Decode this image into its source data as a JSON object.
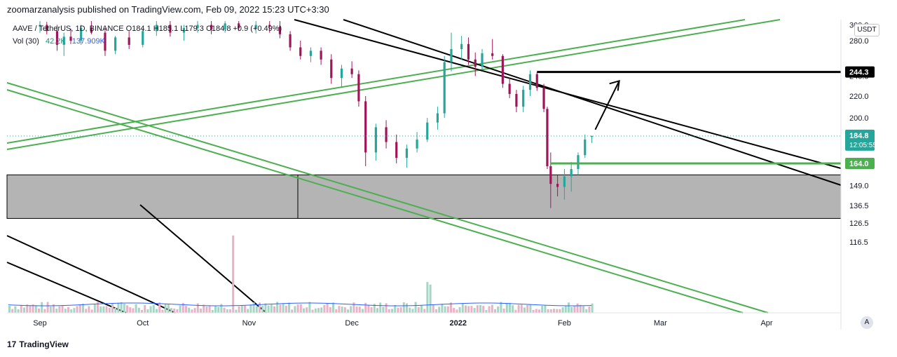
{
  "header": {
    "publisher_line": "zoomarzanalysis published on TradingView.com, Feb 09, 2022 15:23 UTC+3:30"
  },
  "legend": {
    "symbol_line": "AAVE / TetherUS, 1D, BINANCE  O184.1 H185.1 L179.3 C184.8 +0.9 (+0.49%)",
    "vol_label": "Vol (30)",
    "vol_value": "42.2K",
    "vol_ma": "137.909K"
  },
  "currency_badge": "USDT",
  "auto_button": "A",
  "footer": {
    "brand": "TradingView",
    "logo": "17"
  },
  "chart_data": {
    "type": "candlestick",
    "x_axis": {
      "labels": [
        "Sep",
        "Oct",
        "Nov",
        "Dec",
        "2022",
        "Feb",
        "Mar",
        "Apr"
      ],
      "label_dates": [
        "2021-09-01",
        "2021-10-01",
        "2021-11-01",
        "2021-12-01",
        "2022-01-01",
        "2022-02-01",
        "2022-03-01",
        "2022-04-01"
      ]
    },
    "y_axis": {
      "scale": "log",
      "tick_labels": [
        300.0,
        280.0,
        240.0,
        220.0,
        200.0,
        149.0,
        136.5,
        126.5,
        116.5
      ],
      "visible_labels": [
        "300.0",
        "280.0",
        "240.0",
        "220.0",
        "200.0",
        "149.0",
        "136.5",
        "126.5",
        "116.5"
      ],
      "range": [
        112,
        305
      ]
    },
    "price_labels": [
      {
        "value": "244.3",
        "style": "black"
      },
      {
        "value": "184.8",
        "sub": "12:05:55",
        "style": "teal"
      },
      {
        "value": "164.0",
        "style": "green"
      }
    ],
    "current_price": 184.8,
    "series": [
      {
        "values": [
          [
            "2021-09-01",
            298,
            305,
            290,
            300
          ],
          [
            "2021-09-03",
            300,
            304,
            288,
            292
          ],
          [
            "2021-09-06",
            292,
            300,
            268,
            275
          ],
          [
            "2021-09-08",
            275,
            290,
            262,
            285
          ],
          [
            "2021-09-10",
            285,
            295,
            276,
            280
          ],
          [
            "2021-09-13",
            280,
            300,
            275,
            296
          ],
          [
            "2021-09-16",
            296,
            305,
            288,
            290
          ],
          [
            "2021-09-20",
            290,
            296,
            262,
            268
          ],
          [
            "2021-09-23",
            268,
            286,
            264,
            284
          ],
          [
            "2021-09-27",
            284,
            292,
            270,
            275
          ],
          [
            "2021-10-01",
            275,
            295,
            272,
            292
          ],
          [
            "2021-10-05",
            292,
            305,
            286,
            300
          ],
          [
            "2021-10-09",
            300,
            305,
            285,
            290
          ],
          [
            "2021-10-13",
            290,
            300,
            280,
            296
          ],
          [
            "2021-10-17",
            296,
            305,
            290,
            300
          ],
          [
            "2021-10-21",
            300,
            305,
            288,
            294
          ],
          [
            "2021-10-25",
            294,
            305,
            290,
            302
          ],
          [
            "2021-10-29",
            302,
            305,
            292,
            296
          ],
          [
            "2021-11-03",
            296,
            305,
            289,
            300
          ],
          [
            "2021-11-07",
            300,
            305,
            290,
            298
          ],
          [
            "2021-11-10",
            298,
            305,
            283,
            288
          ],
          [
            "2021-11-13",
            288,
            292,
            268,
            272
          ],
          [
            "2021-11-16",
            272,
            280,
            258,
            262
          ],
          [
            "2021-11-19",
            262,
            272,
            255,
            268
          ],
          [
            "2021-11-22",
            268,
            272,
            252,
            258
          ],
          [
            "2021-11-25",
            258,
            264,
            232,
            238
          ],
          [
            "2021-11-28",
            238,
            252,
            228,
            248
          ],
          [
            "2021-12-01",
            248,
            256,
            238,
            242
          ],
          [
            "2021-12-03",
            242,
            246,
            210,
            215
          ],
          [
            "2021-12-05",
            215,
            220,
            162,
            172
          ],
          [
            "2021-12-08",
            172,
            195,
            166,
            192
          ],
          [
            "2021-12-11",
            192,
            198,
            175,
            180
          ],
          [
            "2021-12-14",
            180,
            186,
            164,
            168
          ],
          [
            "2021-12-17",
            168,
            178,
            161,
            175
          ],
          [
            "2021-12-20",
            175,
            188,
            172,
            182
          ],
          [
            "2021-12-23",
            182,
            200,
            180,
            196
          ],
          [
            "2021-12-26",
            196,
            210,
            190,
            204
          ],
          [
            "2021-12-28",
            204,
            262,
            200,
            255
          ],
          [
            "2021-12-30",
            255,
            290,
            245,
            270
          ],
          [
            "2022-01-02",
            270,
            286,
            258,
            276
          ],
          [
            "2022-01-04",
            276,
            284,
            252,
            258
          ],
          [
            "2022-01-06",
            258,
            266,
            240,
            250
          ],
          [
            "2022-01-08",
            250,
            270,
            246,
            265
          ],
          [
            "2022-01-11",
            265,
            282,
            258,
            262
          ],
          [
            "2022-01-14",
            262,
            264,
            228,
            232
          ],
          [
            "2022-01-16",
            232,
            238,
            218,
            222
          ],
          [
            "2022-01-18",
            222,
            226,
            205,
            210
          ],
          [
            "2022-01-20",
            210,
            230,
            205,
            226
          ],
          [
            "2022-01-22",
            226,
            246,
            220,
            242
          ],
          [
            "2022-01-24",
            242,
            244,
            225,
            228
          ],
          [
            "2022-01-26",
            228,
            232,
            205,
            208
          ],
          [
            "2022-01-27",
            208,
            210,
            160,
            162
          ],
          [
            "2022-01-28",
            162,
            172,
            135,
            150
          ],
          [
            "2022-01-30",
            150,
            156,
            142,
            148
          ],
          [
            "2022-02-01",
            148,
            160,
            140,
            155
          ],
          [
            "2022-02-03",
            155,
            165,
            145,
            160
          ],
          [
            "2022-02-05",
            160,
            172,
            156,
            170
          ],
          [
            "2022-02-07",
            170,
            186,
            168,
            182
          ],
          [
            "2022-02-09",
            184.1,
            185.1,
            179.3,
            184.8
          ]
        ]
      }
    ],
    "volume": {
      "label": "Vol (30)",
      "value": "42.2K",
      "ma": "137.909K"
    },
    "drawings": {
      "support_zone": {
        "from": "2021-09-01",
        "price_range": [
          129.0,
          156.0
        ]
      },
      "horizontal_levels": [
        {
          "price": 244.3,
          "from": "2022-01-24",
          "color": "#000000"
        },
        {
          "price": 164.0,
          "from": "2022-01-28",
          "color": "#4caf50"
        }
      ],
      "arrow": {
        "from": [
          "2022-02-10",
          190
        ],
        "to": [
          "2022-02-17",
          235
        ]
      }
    }
  }
}
